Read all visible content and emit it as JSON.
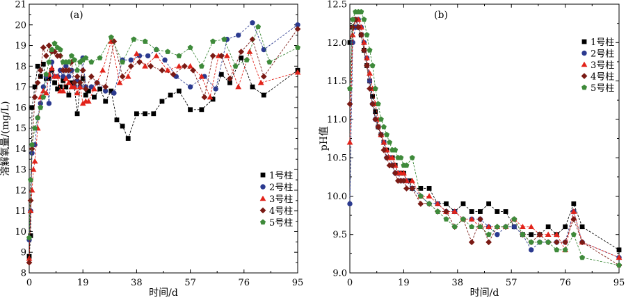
{
  "chart_data": [
    {
      "type": "scatter",
      "panel_label": "(a)",
      "xlabel": "时间/d",
      "ylabel": "溶解氧量/(mg/L)",
      "xlim": [
        0,
        95
      ],
      "ylim": [
        8,
        21
      ],
      "xticks": [
        0,
        19,
        38,
        57,
        76,
        95
      ],
      "yticks": [
        8,
        9,
        10,
        11,
        12,
        13,
        14,
        15,
        16,
        17,
        18,
        19,
        20,
        21
      ],
      "legend_position": "center-right",
      "grid": false,
      "series": [
        {
          "name": "1号柱",
          "color": "#000000",
          "marker": "square",
          "x": [
            0,
            0.5,
            1,
            2,
            3,
            4,
            5,
            6,
            7,
            8,
            9,
            10,
            11,
            12,
            13,
            14,
            15,
            16,
            17,
            18,
            19,
            20,
            21,
            23,
            25,
            27,
            29,
            31,
            33,
            35,
            38,
            41,
            44,
            47,
            50,
            53,
            57,
            61,
            65,
            68,
            71,
            75,
            79,
            83,
            95
          ],
          "y": [
            8.8,
            9.8,
            16.0,
            17.0,
            18.0,
            17.5,
            18.1,
            17.4,
            17.4,
            17.8,
            17.2,
            16.9,
            17.0,
            17.3,
            17.0,
            16.6,
            17.2,
            17.0,
            15.7,
            17.0,
            17.4,
            16.6,
            16.8,
            16.5,
            16.9,
            16.3,
            16.8,
            15.4,
            15.1,
            14.5,
            15.7,
            15.7,
            15.7,
            16.3,
            16.6,
            16.8,
            15.9,
            15.9,
            16.4,
            17.6,
            17.2,
            18.4,
            17.0,
            16.6,
            17.8
          ]
        },
        {
          "name": "2号柱",
          "color": "#2b3a8f",
          "marker": "circle",
          "x": [
            0,
            0.5,
            1,
            2,
            3,
            4,
            5,
            6,
            7,
            8,
            9,
            10,
            11,
            12,
            13,
            14,
            15,
            16,
            17,
            18,
            19,
            20,
            22,
            24,
            27,
            30,
            33,
            36,
            39,
            42,
            45,
            48,
            52,
            57,
            62,
            66,
            70,
            74,
            79,
            83,
            95
          ],
          "y": [
            9.6,
            11.0,
            13.8,
            14.2,
            15.5,
            16.2,
            17.0,
            17.5,
            16.2,
            18.2,
            17.5,
            17.5,
            17.8,
            17.5,
            18.0,
            17.5,
            17.8,
            17.0,
            17.3,
            17.0,
            18.4,
            17.0,
            17.0,
            17.2,
            16.8,
            16.7,
            18.3,
            18.3,
            18.5,
            18.5,
            18.8,
            18.3,
            17.5,
            17.0,
            17.5,
            16.9,
            19.3,
            19.5,
            20.1,
            18.8,
            20.0
          ]
        },
        {
          "name": "3号柱",
          "color": "#e2231a",
          "marker": "triangle",
          "x": [
            0,
            0.5,
            1,
            1.5,
            2,
            3,
            4,
            5,
            6,
            7,
            8,
            9,
            10,
            11,
            12,
            13,
            14,
            15,
            16,
            17,
            18,
            19,
            20,
            21,
            23,
            26,
            29,
            32,
            35,
            38,
            41,
            45,
            49,
            53,
            57,
            61,
            64,
            67,
            70,
            74,
            78,
            82,
            95
          ],
          "y": [
            8.7,
            11.0,
            12.0,
            13.0,
            13.4,
            15.0,
            16.5,
            16.8,
            16.7,
            17.6,
            17.9,
            17.5,
            17.5,
            16.8,
            16.8,
            17.4,
            17.2,
            17.0,
            17.0,
            16.7,
            17.0,
            16.2,
            16.3,
            16.3,
            16.9,
            17.8,
            19.2,
            17.2,
            17.5,
            18.6,
            18.0,
            18.5,
            17.8,
            18.0,
            18.0,
            17.5,
            16.5,
            18.5,
            18.5,
            17.0,
            18.7,
            17.2,
            17.7
          ]
        },
        {
          "name": "4号柱",
          "color": "#7a1a14",
          "marker": "diamond",
          "x": [
            0,
            0.5,
            1,
            2,
            3,
            4,
            5,
            6,
            7,
            8,
            9,
            10,
            11,
            12,
            13,
            14,
            15,
            16,
            17,
            18,
            19,
            20,
            22,
            24,
            27,
            30,
            33,
            36,
            39,
            43,
            47,
            51,
            55,
            58,
            62,
            65,
            68,
            71,
            75,
            79,
            83,
            95
          ],
          "y": [
            8.5,
            11.5,
            14.0,
            16.5,
            17.2,
            17.8,
            18.9,
            18.5,
            19.0,
            18.7,
            18.7,
            18.5,
            18.5,
            17.8,
            17.8,
            17.8,
            18.2,
            17.2,
            17.5,
            17.2,
            17.8,
            16.9,
            17.5,
            17.2,
            17.0,
            19.2,
            17.5,
            18.0,
            18.2,
            18.0,
            17.8,
            17.6,
            18.0,
            17.8,
            16.5,
            18.5,
            18.5,
            17.4,
            18.7,
            19.3,
            17.5,
            19.8
          ]
        },
        {
          "name": "5号柱",
          "color": "#3e8a3a",
          "marker": "pentagon",
          "x": [
            0,
            0.5,
            1,
            2,
            3,
            4,
            5,
            6,
            7,
            8,
            9,
            10,
            11,
            12,
            13,
            14,
            15,
            16,
            17,
            18,
            19,
            20,
            22,
            25,
            29,
            33,
            37,
            41,
            45,
            49,
            53,
            57,
            61,
            65,
            69,
            73,
            77,
            81,
            85,
            95
          ],
          "y": [
            9.7,
            12.5,
            14.2,
            15.0,
            15.5,
            16.0,
            16.5,
            17.6,
            18.2,
            18.8,
            19.1,
            18.9,
            18.8,
            18.2,
            18.2,
            18.2,
            18.5,
            18.3,
            17.8,
            18.2,
            18.3,
            18.4,
            18.2,
            18.4,
            19.4,
            18.2,
            19.3,
            19.2,
            18.8,
            18.7,
            18.5,
            18.9,
            18.0,
            19.2,
            19.3,
            18.0,
            18.3,
            19.9,
            18.2,
            18.9
          ]
        }
      ]
    },
    {
      "type": "scatter",
      "panel_label": "(b)",
      "xlabel": "时间/d",
      "ylabel": "pH值",
      "xlim": [
        0,
        95
      ],
      "ylim": [
        9.0,
        12.5
      ],
      "xticks": [
        0,
        19,
        38,
        57,
        76,
        95
      ],
      "yticks": [
        9.0,
        9.5,
        10.0,
        10.5,
        11.0,
        11.5,
        12.0,
        12.5
      ],
      "legend_position": "top-right",
      "grid": false,
      "series": [
        {
          "name": "1号柱",
          "color": "#000000",
          "marker": "square",
          "x": [
            0,
            1,
            2,
            3,
            4,
            5,
            6,
            7,
            8,
            9,
            10,
            11,
            12,
            13,
            14,
            15,
            16,
            17,
            18,
            19,
            20,
            21,
            22,
            25,
            28,
            31,
            34,
            37,
            40,
            43,
            46,
            49,
            52,
            55,
            58,
            61,
            64,
            67,
            70,
            73,
            76,
            79,
            82,
            95
          ],
          "y": [
            12.0,
            12.2,
            12.3,
            12.2,
            12.1,
            11.9,
            11.7,
            11.5,
            11.3,
            11.1,
            10.9,
            10.8,
            10.7,
            10.6,
            10.5,
            10.5,
            10.4,
            10.3,
            10.3,
            10.3,
            10.2,
            10.2,
            10.1,
            10.1,
            10.1,
            9.9,
            9.9,
            9.8,
            9.9,
            9.8,
            9.8,
            9.9,
            9.8,
            9.8,
            9.6,
            9.5,
            9.5,
            9.5,
            9.6,
            9.5,
            9.6,
            9.9,
            9.6,
            9.3
          ]
        },
        {
          "name": "2号柱",
          "color": "#2b3a8f",
          "marker": "circle",
          "x": [
            0,
            1,
            2,
            3,
            4,
            5,
            6,
            7,
            8,
            9,
            10,
            11,
            12,
            13,
            14,
            15,
            16,
            17,
            18,
            19,
            20,
            22,
            25,
            28,
            31,
            34,
            37,
            40,
            43,
            46,
            49,
            52,
            55,
            58,
            61,
            64,
            67,
            70,
            73,
            76,
            79,
            82,
            95
          ],
          "y": [
            9.9,
            12.0,
            12.2,
            12.3,
            12.2,
            12.0,
            11.8,
            11.5,
            11.2,
            11.0,
            10.9,
            10.8,
            10.7,
            10.5,
            10.5,
            10.4,
            10.3,
            10.3,
            10.2,
            10.2,
            10.2,
            10.1,
            10.0,
            9.9,
            9.9,
            9.8,
            9.8,
            9.7,
            9.7,
            9.7,
            9.6,
            9.5,
            9.6,
            9.6,
            9.5,
            9.3,
            9.4,
            9.4,
            9.4,
            9.4,
            9.8,
            9.4,
            9.2
          ]
        },
        {
          "name": "3号柱",
          "color": "#e2231a",
          "marker": "triangle",
          "x": [
            0,
            1,
            2,
            3,
            4,
            5,
            6,
            7,
            8,
            9,
            10,
            11,
            12,
            13,
            14,
            15,
            16,
            17,
            18,
            19,
            20,
            22,
            25,
            28,
            31,
            34,
            37,
            40,
            43,
            46,
            49,
            52,
            55,
            58,
            61,
            64,
            67,
            70,
            73,
            76,
            79,
            82,
            95
          ],
          "y": [
            10.7,
            12.1,
            12.3,
            12.3,
            12.2,
            12.0,
            11.8,
            11.6,
            11.4,
            11.2,
            11.0,
            10.8,
            10.7,
            10.6,
            10.5,
            10.5,
            10.4,
            10.3,
            10.3,
            10.3,
            10.2,
            10.2,
            10.0,
            10.0,
            9.9,
            9.8,
            9.8,
            9.7,
            9.7,
            9.6,
            9.6,
            9.6,
            9.6,
            9.7,
            9.6,
            9.6,
            9.5,
            9.5,
            9.5,
            9.3,
            9.8,
            9.4,
            9.2
          ]
        },
        {
          "name": "4号柱",
          "color": "#7a1a14",
          "marker": "diamond",
          "x": [
            0,
            1,
            2,
            3,
            4,
            5,
            6,
            7,
            8,
            9,
            10,
            11,
            12,
            13,
            14,
            15,
            16,
            17,
            18,
            19,
            20,
            22,
            25,
            28,
            31,
            34,
            37,
            40,
            43,
            46,
            49,
            52,
            55,
            58,
            61,
            64,
            67,
            70,
            73,
            76,
            79,
            82,
            95
          ],
          "y": [
            11.2,
            12.2,
            12.3,
            12.2,
            12.1,
            11.9,
            11.7,
            11.4,
            11.2,
            11.0,
            10.9,
            10.8,
            10.6,
            10.5,
            10.4,
            10.4,
            10.3,
            10.2,
            10.2,
            10.2,
            10.1,
            10.1,
            9.9,
            9.9,
            9.8,
            9.8,
            9.6,
            9.7,
            9.4,
            9.7,
            9.4,
            9.6,
            9.6,
            9.7,
            9.5,
            9.4,
            9.5,
            9.4,
            9.4,
            9.4,
            9.7,
            9.4,
            9.1
          ]
        },
        {
          "name": "5号柱",
          "color": "#3e8a3a",
          "marker": "pentagon",
          "x": [
            0,
            1,
            2,
            3,
            4,
            5,
            6,
            7,
            8,
            9,
            10,
            11,
            12,
            13,
            14,
            15,
            16,
            17,
            18,
            19,
            20,
            22,
            25,
            28,
            31,
            34,
            37,
            40,
            43,
            46,
            49,
            52,
            55,
            58,
            61,
            64,
            67,
            70,
            73,
            76,
            79,
            82,
            95
          ],
          "y": [
            11.4,
            12.3,
            12.4,
            12.4,
            12.4,
            12.3,
            12.1,
            11.9,
            11.7,
            11.4,
            11.2,
            11.0,
            10.9,
            10.8,
            10.7,
            10.6,
            10.6,
            10.5,
            10.5,
            10.4,
            10.4,
            10.5,
            10.0,
            9.9,
            9.8,
            9.7,
            9.6,
            9.7,
            9.6,
            9.6,
            9.5,
            9.6,
            9.6,
            9.7,
            9.5,
            9.4,
            9.4,
            9.4,
            9.3,
            9.3,
            9.5,
            9.2,
            9.1
          ]
        }
      ]
    }
  ]
}
